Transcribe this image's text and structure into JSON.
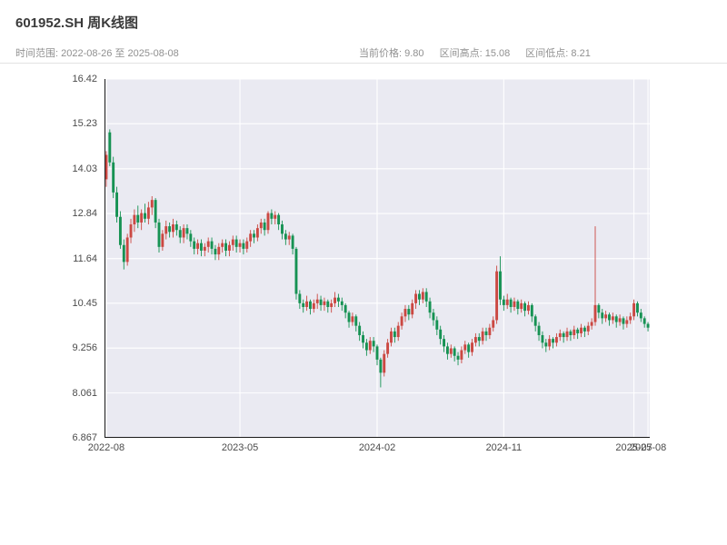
{
  "header": {
    "title": "601952.SH 周K线图",
    "subtitle_left": "时间范围: 2022-08-26 至 2025-08-08",
    "stats_items": {
      "current": "当前价格: 9.80",
      "high": "区间高点: 15.08",
      "low": "区间低点: 8.21"
    }
  },
  "chart_data": {
    "type": "candlestick",
    "symbol": "601952.SH",
    "interval": "weekly",
    "title": "601952.SH 周K线图",
    "date_range": {
      "start": "2022-08-26",
      "end": "2025-08-08"
    },
    "stats": {
      "current_price": 9.8,
      "range_high": 15.08,
      "range_low": 8.21
    },
    "colors": {
      "up": "#cb4842",
      "down": "#169253",
      "plot_bg": "#eaeaf2",
      "grid": "#ffffff",
      "spine": "#1a1a1a"
    },
    "y_axis": {
      "min": 6.867,
      "max": 16.42,
      "ticks": [
        {
          "v": 16.42,
          "label": "16.42"
        },
        {
          "v": 15.23,
          "label": "15.23"
        },
        {
          "v": 14.03,
          "label": "14.03"
        },
        {
          "v": 12.84,
          "label": "12.84"
        },
        {
          "v": 11.64,
          "label": "11.64"
        },
        {
          "v": 10.45,
          "label": "10.45"
        },
        {
          "v": 9.256,
          "label": "9.256"
        },
        {
          "v": 8.061,
          "label": "8.061"
        },
        {
          "v": 6.867,
          "label": "6.867"
        }
      ]
    },
    "x_ticks": [
      {
        "i": 0,
        "label": "2022-08"
      },
      {
        "i": 38,
        "label": "2023-05"
      },
      {
        "i": 77,
        "label": "2024-02"
      },
      {
        "i": 113,
        "label": "2024-11"
      },
      {
        "i": 150,
        "label": "2025-07"
      },
      {
        "i": 154,
        "label": "2025-08"
      }
    ],
    "candles": [
      [
        13.75,
        14.5,
        13.55,
        14.4
      ],
      [
        15.0,
        15.08,
        14.1,
        14.2
      ],
      [
        14.2,
        14.35,
        13.25,
        13.4
      ],
      [
        13.4,
        13.55,
        12.6,
        12.75
      ],
      [
        12.75,
        12.9,
        11.9,
        12.0
      ],
      [
        12.0,
        12.15,
        11.35,
        11.55
      ],
      [
        11.55,
        12.3,
        11.45,
        12.2
      ],
      [
        12.2,
        12.7,
        12.05,
        12.55
      ],
      [
        12.55,
        12.95,
        12.35,
        12.8
      ],
      [
        12.8,
        13.05,
        12.45,
        12.6
      ],
      [
        12.6,
        12.95,
        12.4,
        12.85
      ],
      [
        12.85,
        13.1,
        12.6,
        12.7
      ],
      [
        12.7,
        13.15,
        12.55,
        13.0
      ],
      [
        13.0,
        13.3,
        12.8,
        13.2
      ],
      [
        13.2,
        13.25,
        12.45,
        12.6
      ],
      [
        12.6,
        12.7,
        11.8,
        11.95
      ],
      [
        11.95,
        12.4,
        11.85,
        12.3
      ],
      [
        12.3,
        12.65,
        12.15,
        12.5
      ],
      [
        12.5,
        12.6,
        12.2,
        12.35
      ],
      [
        12.35,
        12.7,
        12.2,
        12.55
      ],
      [
        12.55,
        12.65,
        12.25,
        12.4
      ],
      [
        12.4,
        12.5,
        12.05,
        12.2
      ],
      [
        12.2,
        12.55,
        12.05,
        12.45
      ],
      [
        12.45,
        12.55,
        12.15,
        12.3
      ],
      [
        12.3,
        12.4,
        11.95,
        12.1
      ],
      [
        12.1,
        12.2,
        11.75,
        11.9
      ],
      [
        11.9,
        12.15,
        11.75,
        12.05
      ],
      [
        12.05,
        12.15,
        11.7,
        11.85
      ],
      [
        11.85,
        12.05,
        11.7,
        11.95
      ],
      [
        11.95,
        12.2,
        11.8,
        12.1
      ],
      [
        12.1,
        12.2,
        11.75,
        11.9
      ],
      [
        11.9,
        12.0,
        11.6,
        11.75
      ],
      [
        11.75,
        12.05,
        11.6,
        11.95
      ],
      [
        11.95,
        12.15,
        11.8,
        12.05
      ],
      [
        12.05,
        12.15,
        11.7,
        11.85
      ],
      [
        11.85,
        12.1,
        11.7,
        12.0
      ],
      [
        12.0,
        12.25,
        11.85,
        12.15
      ],
      [
        12.15,
        12.25,
        11.8,
        11.95
      ],
      [
        11.95,
        12.15,
        11.8,
        12.05
      ],
      [
        12.05,
        12.15,
        11.75,
        11.9
      ],
      [
        11.9,
        12.2,
        11.8,
        12.1
      ],
      [
        12.1,
        12.4,
        11.95,
        12.3
      ],
      [
        12.3,
        12.4,
        12.05,
        12.2
      ],
      [
        12.2,
        12.55,
        12.1,
        12.45
      ],
      [
        12.45,
        12.7,
        12.3,
        12.6
      ],
      [
        12.6,
        12.7,
        12.25,
        12.4
      ],
      [
        12.4,
        12.9,
        12.3,
        12.85
      ],
      [
        12.85,
        12.95,
        12.55,
        12.7
      ],
      [
        12.7,
        12.9,
        12.55,
        12.8
      ],
      [
        12.8,
        12.85,
        12.4,
        12.55
      ],
      [
        12.55,
        12.65,
        12.15,
        12.3
      ],
      [
        12.3,
        12.4,
        12.0,
        12.15
      ],
      [
        12.15,
        12.35,
        12.0,
        12.25
      ],
      [
        12.25,
        12.3,
        11.75,
        11.9
      ],
      [
        11.9,
        11.95,
        10.55,
        10.7
      ],
      [
        10.7,
        10.8,
        10.3,
        10.45
      ],
      [
        10.45,
        10.55,
        10.2,
        10.35
      ],
      [
        10.35,
        10.65,
        10.25,
        10.5
      ],
      [
        10.5,
        10.55,
        10.15,
        10.3
      ],
      [
        10.3,
        10.55,
        10.2,
        10.45
      ],
      [
        10.45,
        10.7,
        10.3,
        10.55
      ],
      [
        10.55,
        10.65,
        10.25,
        10.4
      ],
      [
        10.4,
        10.6,
        10.25,
        10.5
      ],
      [
        10.5,
        10.55,
        10.2,
        10.35
      ],
      [
        10.35,
        10.55,
        10.2,
        10.45
      ],
      [
        10.45,
        10.75,
        10.35,
        10.6
      ],
      [
        10.6,
        10.7,
        10.35,
        10.5
      ],
      [
        10.5,
        10.6,
        10.25,
        10.4
      ],
      [
        10.4,
        10.45,
        10.05,
        10.2
      ],
      [
        10.2,
        10.25,
        9.8,
        9.95
      ],
      [
        9.95,
        10.2,
        9.85,
        10.1
      ],
      [
        10.1,
        10.15,
        9.7,
        9.85
      ],
      [
        9.85,
        9.95,
        9.45,
        9.6
      ],
      [
        9.6,
        9.7,
        9.25,
        9.4
      ],
      [
        9.4,
        9.5,
        9.05,
        9.2
      ],
      [
        9.2,
        9.55,
        9.1,
        9.45
      ],
      [
        9.45,
        9.55,
        9.15,
        9.3
      ],
      [
        9.3,
        9.35,
        8.8,
        8.95
      ],
      [
        8.95,
        9.0,
        8.21,
        8.6
      ],
      [
        8.6,
        9.2,
        8.5,
        9.1
      ],
      [
        9.1,
        9.5,
        9.0,
        9.4
      ],
      [
        9.4,
        9.8,
        9.3,
        9.7
      ],
      [
        9.7,
        9.8,
        9.4,
        9.55
      ],
      [
        9.55,
        9.95,
        9.45,
        9.85
      ],
      [
        9.85,
        10.2,
        9.75,
        10.1
      ],
      [
        10.1,
        10.4,
        9.95,
        10.3
      ],
      [
        10.3,
        10.4,
        10.0,
        10.15
      ],
      [
        10.15,
        10.55,
        10.05,
        10.45
      ],
      [
        10.45,
        10.8,
        10.3,
        10.7
      ],
      [
        10.7,
        10.8,
        10.4,
        10.55
      ],
      [
        10.55,
        10.85,
        10.45,
        10.75
      ],
      [
        10.75,
        10.85,
        10.35,
        10.5
      ],
      [
        10.5,
        10.6,
        10.05,
        10.2
      ],
      [
        10.2,
        10.3,
        9.85,
        10.0
      ],
      [
        10.0,
        10.1,
        9.6,
        9.75
      ],
      [
        9.75,
        9.85,
        9.35,
        9.5
      ],
      [
        9.5,
        9.6,
        9.15,
        9.3
      ],
      [
        9.3,
        9.4,
        8.95,
        9.1
      ],
      [
        9.1,
        9.35,
        9.0,
        9.25
      ],
      [
        9.25,
        9.3,
        8.9,
        9.05
      ],
      [
        9.05,
        9.15,
        8.8,
        8.95
      ],
      [
        8.95,
        9.3,
        8.85,
        9.2
      ],
      [
        9.2,
        9.45,
        9.1,
        9.35
      ],
      [
        9.35,
        9.4,
        9.0,
        9.15
      ],
      [
        9.15,
        9.5,
        9.05,
        9.4
      ],
      [
        9.4,
        9.65,
        9.3,
        9.55
      ],
      [
        9.55,
        9.65,
        9.3,
        9.45
      ],
      [
        9.45,
        9.8,
        9.35,
        9.7
      ],
      [
        9.7,
        9.8,
        9.45,
        9.6
      ],
      [
        9.6,
        9.9,
        9.5,
        9.8
      ],
      [
        9.8,
        10.1,
        9.7,
        10.0
      ],
      [
        10.0,
        11.45,
        9.9,
        11.3
      ],
      [
        11.3,
        11.7,
        10.4,
        10.55
      ],
      [
        10.55,
        10.65,
        10.25,
        10.4
      ],
      [
        10.4,
        10.7,
        10.3,
        10.55
      ],
      [
        10.55,
        10.6,
        10.2,
        10.35
      ],
      [
        10.35,
        10.6,
        10.25,
        10.5
      ],
      [
        10.5,
        10.55,
        10.15,
        10.3
      ],
      [
        10.3,
        10.55,
        10.2,
        10.45
      ],
      [
        10.45,
        10.5,
        10.1,
        10.25
      ],
      [
        10.25,
        10.5,
        10.15,
        10.4
      ],
      [
        10.4,
        10.45,
        9.95,
        10.1
      ],
      [
        10.1,
        10.15,
        9.7,
        9.85
      ],
      [
        9.85,
        9.95,
        9.45,
        9.6
      ],
      [
        9.6,
        9.7,
        9.25,
        9.4
      ],
      [
        9.4,
        9.5,
        9.15,
        9.3
      ],
      [
        9.3,
        9.6,
        9.2,
        9.5
      ],
      [
        9.5,
        9.55,
        9.25,
        9.4
      ],
      [
        9.4,
        9.65,
        9.3,
        9.55
      ],
      [
        9.55,
        9.75,
        9.45,
        9.65
      ],
      [
        9.65,
        9.7,
        9.4,
        9.55
      ],
      [
        9.55,
        9.8,
        9.45,
        9.7
      ],
      [
        9.7,
        9.75,
        9.45,
        9.6
      ],
      [
        9.6,
        9.85,
        9.5,
        9.75
      ],
      [
        9.75,
        9.8,
        9.5,
        9.65
      ],
      [
        9.65,
        9.9,
        9.55,
        9.8
      ],
      [
        9.8,
        9.85,
        9.55,
        9.7
      ],
      [
        9.7,
        9.95,
        9.6,
        9.85
      ],
      [
        9.85,
        10.05,
        9.75,
        9.95
      ],
      [
        9.95,
        12.5,
        9.85,
        10.4
      ],
      [
        10.4,
        10.45,
        10.05,
        10.2
      ],
      [
        10.2,
        10.3,
        9.9,
        10.05
      ],
      [
        10.05,
        10.25,
        9.95,
        10.15
      ],
      [
        10.15,
        10.2,
        9.85,
        10.0
      ],
      [
        10.0,
        10.2,
        9.9,
        10.1
      ],
      [
        10.1,
        10.15,
        9.8,
        9.95
      ],
      [
        9.95,
        10.15,
        9.85,
        10.05
      ],
      [
        10.05,
        10.1,
        9.75,
        9.9
      ],
      [
        9.9,
        10.1,
        9.8,
        10.0
      ],
      [
        10.0,
        10.2,
        9.9,
        10.1
      ],
      [
        10.1,
        10.55,
        10.0,
        10.45
      ],
      [
        10.45,
        10.5,
        10.1,
        10.2
      ],
      [
        10.2,
        10.3,
        9.95,
        10.05
      ],
      [
        10.05,
        10.1,
        9.8,
        9.9
      ],
      [
        9.9,
        9.95,
        9.7,
        9.8
      ]
    ]
  }
}
